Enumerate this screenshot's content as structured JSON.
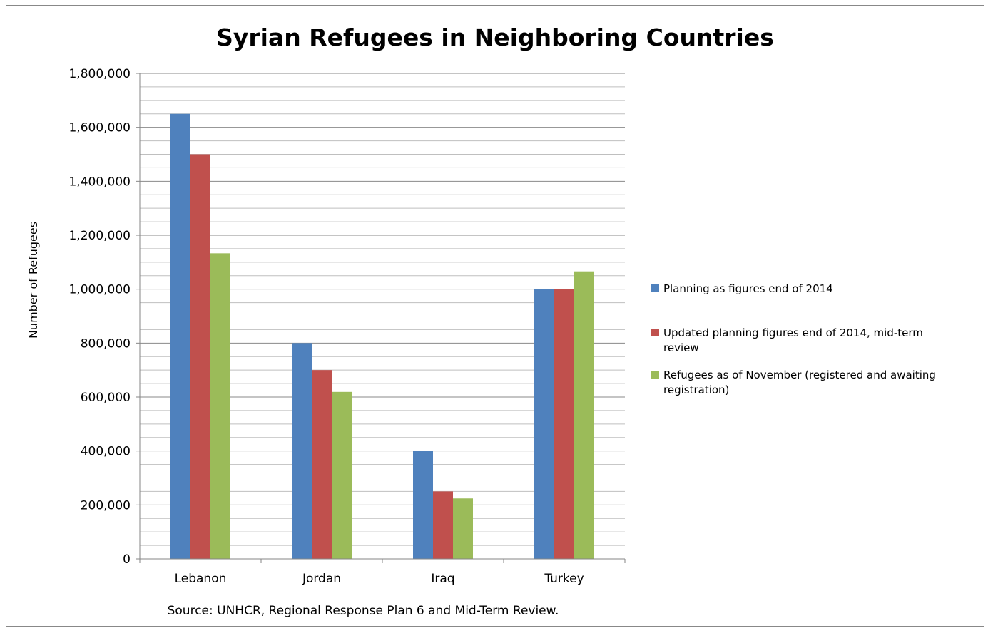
{
  "chart_data": {
    "type": "bar",
    "title": "Syrian Refugees in Neighboring Countries",
    "xlabel": "",
    "ylabel": "Number of Refugees",
    "categories": [
      "Lebanon",
      "Jordan",
      "Iraq",
      "Turkey"
    ],
    "series": [
      {
        "name": "Planning as figures end of 2014",
        "color": "#4F81BD",
        "values": [
          1650000,
          800000,
          400000,
          1000000
        ]
      },
      {
        "name": "Updated planning figures end of 2014, mid-term review",
        "color": "#C0504D",
        "values": [
          1500000,
          700000,
          250000,
          1000000
        ]
      },
      {
        "name": "Refugees as of November (registered and awaiting registration)",
        "color": "#9BBB59",
        "values": [
          1133000,
          619000,
          224000,
          1066000
        ]
      }
    ],
    "ylim": [
      0,
      1800000
    ],
    "yticks": [
      "0",
      "200,000",
      "400,000",
      "600,000",
      "800,000",
      "1,000,000",
      "1,200,000",
      "1,400,000",
      "1,600,000",
      "1,800,000"
    ],
    "grid": true,
    "legend_position": "right",
    "source_note": "Source: UNHCR, Regional Response Plan 6 and Mid-Term Review."
  }
}
